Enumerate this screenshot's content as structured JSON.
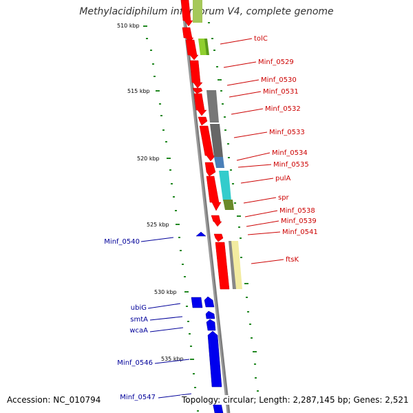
{
  "title": "Methylacidiphilum infernorum V4, complete genome",
  "accession": "Accession: NC_010794",
  "topology": "Topology: circular; Length: 2,287,145 bp; Genes: 2,521",
  "kbp_ticks": [
    "510 kbp",
    "515 kbp",
    "520 kbp",
    "525 kbp",
    "530 kbp",
    "535 kbp"
  ],
  "forward_gene_labels": [
    "tolC",
    "Minf_0529",
    "Minf_0530",
    "Minf_0531",
    "Minf_0532",
    "Minf_0533",
    "Minf_0534",
    "Minf_0535",
    "pulA",
    "spr",
    "Minf_0538",
    "Minf_0539",
    "Minf_0541",
    "ftsK"
  ],
  "reverse_gene_labels": [
    "Minf_0540",
    "ubiG",
    "smtA",
    "wcaA",
    "Minf_0546",
    "Minf_0547"
  ],
  "colors": {
    "forward_label": "#cc0000",
    "reverse_label": "#000099",
    "forward_gene": "#ff0000",
    "reverse_gene": "#0000ee",
    "backbone": "#888888",
    "gc_skew_dots": "#228822"
  }
}
